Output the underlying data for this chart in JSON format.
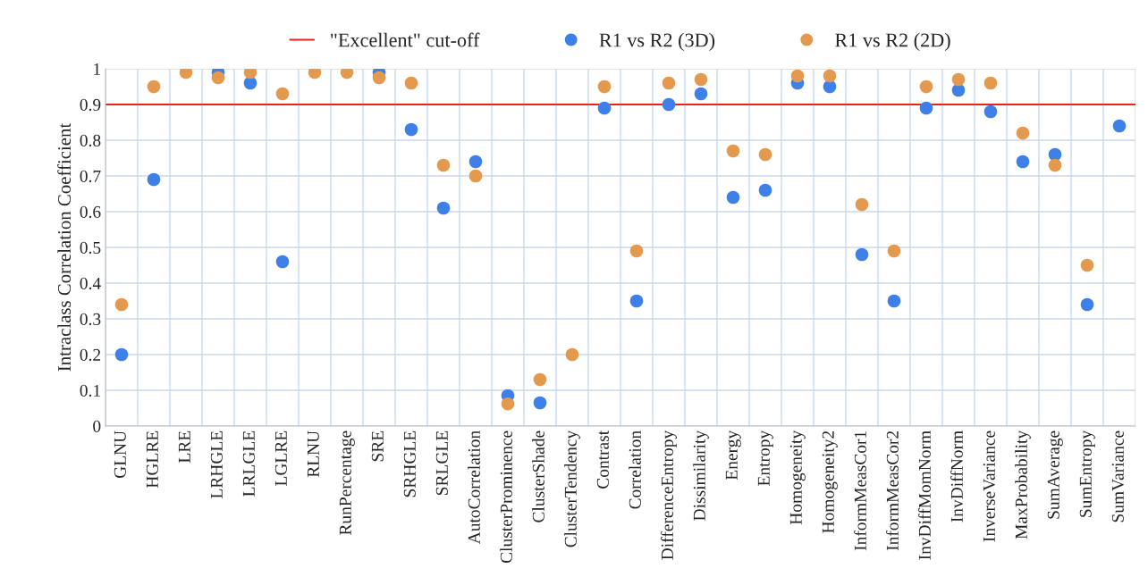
{
  "chart_data": {
    "type": "scatter",
    "ylabel": "Intraclass Correlation Coefficient",
    "categories": [
      "GLNU",
      "HGLRE",
      "LRE",
      "LRHGLE",
      "LRLGLE",
      "LGLRE",
      "RLNU",
      "RunPercentage",
      "SRE",
      "SRHGLE",
      "SRLGLE",
      "AutoCorrelation",
      "ClusterProminence",
      "ClusterShade",
      "ClusterTendency",
      "Contrast",
      "Correlation",
      "DifferenceEntropy",
      "Dissimilarity",
      "Energy",
      "Entropy",
      "Homogeneity",
      "Homogeneity2",
      "InformMeasCor1",
      "InformMeasCor2",
      "InvDiffMomNorm",
      "InvDiffNorm",
      "InverseVariance",
      "MaxProbability",
      "SumAverage",
      "SumEntropy",
      "SumVariance"
    ],
    "series": [
      {
        "name": "R1 vs R2 (3D)",
        "color": "#3f7fe8",
        "values": [
          0.2,
          0.69,
          null,
          0.99,
          0.96,
          0.46,
          null,
          null,
          0.99,
          0.83,
          0.61,
          0.74,
          0.085,
          0.065,
          null,
          0.89,
          0.35,
          0.9,
          0.93,
          0.64,
          0.66,
          0.96,
          0.95,
          0.48,
          0.35,
          0.89,
          0.94,
          0.88,
          0.74,
          0.76,
          0.34,
          0.84
        ]
      },
      {
        "name": "R1 vs R2 (2D)",
        "color": "#e39a4f",
        "values": [
          0.34,
          0.95,
          0.99,
          0.975,
          0.99,
          0.93,
          0.99,
          0.99,
          0.975,
          0.96,
          0.73,
          0.7,
          0.062,
          0.13,
          0.2,
          0.95,
          0.49,
          0.96,
          0.97,
          0.77,
          0.76,
          0.98,
          0.98,
          0.62,
          0.49,
          0.95,
          0.97,
          0.96,
          0.82,
          0.73,
          0.45,
          null
        ]
      }
    ],
    "ref_lines": [
      {
        "axis": "y",
        "value": 0.9,
        "label": "\"Excellent\" cut-off",
        "color": "#e8231d"
      }
    ],
    "ylim": [
      0,
      1
    ],
    "yticks": [
      0,
      0.1,
      0.2,
      0.3,
      0.4,
      0.5,
      0.6,
      0.7,
      0.8,
      0.9,
      1
    ],
    "grid": true,
    "legend": "top",
    "marker": "circle"
  }
}
